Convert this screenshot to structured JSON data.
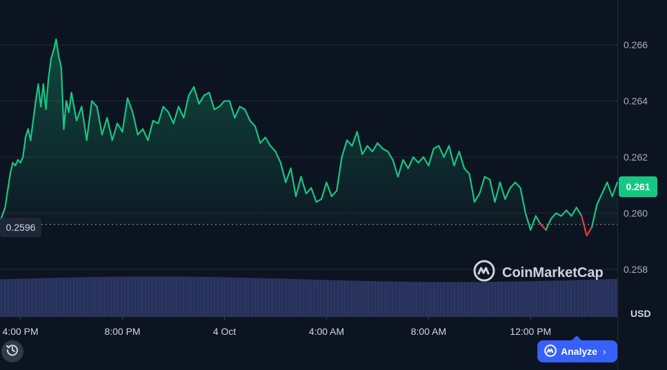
{
  "chart_data": {
    "type": "line",
    "currency": "USD",
    "current_price": "0.261",
    "start_price": "0.2596",
    "y_ticks": [
      "0.266",
      "0.264",
      "0.262",
      "0.260",
      "0.258"
    ],
    "y_tick_values": [
      0.266,
      0.264,
      0.262,
      0.26,
      0.258
    ],
    "ylim": [
      0.2563,
      0.2676
    ],
    "x_ticks": [
      "4:00 PM",
      "8:00 PM",
      "4 Oct",
      "4:00 AM",
      "8:00 AM",
      "12:00 PM"
    ],
    "x_tick_hours": [
      0,
      4,
      8,
      12,
      16,
      20
    ],
    "xlim_hours": [
      -0.8,
      23.4
    ],
    "x_unit": "hours since 4:00 PM",
    "grid": true,
    "colors": {
      "up": "#16c784",
      "down": "#ea3943",
      "volume": "#2b3561",
      "grid": "#222a38",
      "background": "#0d1421"
    },
    "price_series": [
      [
        -0.8,
        0.2597
      ],
      [
        -0.6,
        0.2602
      ],
      [
        -0.4,
        0.2614
      ],
      [
        -0.3,
        0.2618
      ],
      [
        -0.2,
        0.2617
      ],
      [
        -0.1,
        0.2619
      ],
      [
        0.0,
        0.2618
      ],
      [
        0.1,
        0.262
      ],
      [
        0.2,
        0.2627
      ],
      [
        0.3,
        0.263
      ],
      [
        0.4,
        0.2626
      ],
      [
        0.5,
        0.2633
      ],
      [
        0.6,
        0.264
      ],
      [
        0.7,
        0.2646
      ],
      [
        0.8,
        0.2638
      ],
      [
        0.9,
        0.2646
      ],
      [
        1.0,
        0.2637
      ],
      [
        1.1,
        0.2648
      ],
      [
        1.2,
        0.2655
      ],
      [
        1.3,
        0.2658
      ],
      [
        1.4,
        0.2662
      ],
      [
        1.5,
        0.2656
      ],
      [
        1.6,
        0.2652
      ],
      [
        1.7,
        0.263
      ],
      [
        1.8,
        0.264
      ],
      [
        1.9,
        0.2636
      ],
      [
        2.0,
        0.2643
      ],
      [
        2.2,
        0.2633
      ],
      [
        2.4,
        0.2638
      ],
      [
        2.6,
        0.2626
      ],
      [
        2.8,
        0.264
      ],
      [
        3.0,
        0.2638
      ],
      [
        3.2,
        0.2628
      ],
      [
        3.4,
        0.2634
      ],
      [
        3.6,
        0.2626
      ],
      [
        3.8,
        0.2632
      ],
      [
        4.0,
        0.2629
      ],
      [
        4.2,
        0.2641
      ],
      [
        4.4,
        0.2636
      ],
      [
        4.6,
        0.2628
      ],
      [
        4.8,
        0.263
      ],
      [
        5.0,
        0.2626
      ],
      [
        5.2,
        0.2633
      ],
      [
        5.4,
        0.2632
      ],
      [
        5.6,
        0.2638
      ],
      [
        5.8,
        0.2636
      ],
      [
        6.0,
        0.2632
      ],
      [
        6.2,
        0.2638
      ],
      [
        6.4,
        0.2634
      ],
      [
        6.6,
        0.2642
      ],
      [
        6.8,
        0.2645
      ],
      [
        7.0,
        0.2639
      ],
      [
        7.2,
        0.2642
      ],
      [
        7.4,
        0.2643
      ],
      [
        7.6,
        0.2637
      ],
      [
        7.8,
        0.2638
      ],
      [
        8.0,
        0.264
      ],
      [
        8.2,
        0.264
      ],
      [
        8.4,
        0.2634
      ],
      [
        8.6,
        0.2638
      ],
      [
        8.8,
        0.2637
      ],
      [
        9.0,
        0.2633
      ],
      [
        9.2,
        0.2631
      ],
      [
        9.4,
        0.2625
      ],
      [
        9.6,
        0.2627
      ],
      [
        9.8,
        0.2624
      ],
      [
        10.0,
        0.2622
      ],
      [
        10.2,
        0.2618
      ],
      [
        10.4,
        0.2611
      ],
      [
        10.6,
        0.2616
      ],
      [
        10.8,
        0.2606
      ],
      [
        11.0,
        0.2613
      ],
      [
        11.2,
        0.2607
      ],
      [
        11.4,
        0.2609
      ],
      [
        11.6,
        0.2604
      ],
      [
        11.8,
        0.2605
      ],
      [
        12.0,
        0.2611
      ],
      [
        12.2,
        0.2606
      ],
      [
        12.4,
        0.2608
      ],
      [
        12.6,
        0.262
      ],
      [
        12.8,
        0.2626
      ],
      [
        13.0,
        0.2624
      ],
      [
        13.2,
        0.2629
      ],
      [
        13.4,
        0.2621
      ],
      [
        13.6,
        0.2624
      ],
      [
        13.8,
        0.2622
      ],
      [
        14.0,
        0.2625
      ],
      [
        14.2,
        0.2623
      ],
      [
        14.4,
        0.2622
      ],
      [
        14.6,
        0.2619
      ],
      [
        14.8,
        0.2613
      ],
      [
        15.0,
        0.2619
      ],
      [
        15.2,
        0.2616
      ],
      [
        15.4,
        0.262
      ],
      [
        15.6,
        0.2618
      ],
      [
        15.8,
        0.262
      ],
      [
        16.0,
        0.2617
      ],
      [
        16.2,
        0.2623
      ],
      [
        16.4,
        0.2624
      ],
      [
        16.6,
        0.262
      ],
      [
        16.8,
        0.2624
      ],
      [
        17.0,
        0.2617
      ],
      [
        17.2,
        0.2622
      ],
      [
        17.4,
        0.2616
      ],
      [
        17.6,
        0.2614
      ],
      [
        17.8,
        0.2604
      ],
      [
        18.0,
        0.2607
      ],
      [
        18.2,
        0.2613
      ],
      [
        18.4,
        0.2612
      ],
      [
        18.6,
        0.2604
      ],
      [
        18.8,
        0.2611
      ],
      [
        19.0,
        0.2605
      ],
      [
        19.2,
        0.2609
      ],
      [
        19.4,
        0.2611
      ],
      [
        19.6,
        0.2609
      ],
      [
        19.8,
        0.26
      ],
      [
        20.0,
        0.2594
      ],
      [
        20.2,
        0.2599
      ],
      [
        20.4,
        0.2596
      ],
      [
        20.6,
        0.2594
      ],
      [
        20.8,
        0.2598
      ],
      [
        21.0,
        0.26
      ],
      [
        21.2,
        0.2599
      ],
      [
        21.4,
        0.2601
      ],
      [
        21.6,
        0.2599
      ],
      [
        21.8,
        0.2602
      ],
      [
        22.0,
        0.2599
      ],
      [
        22.2,
        0.2592
      ],
      [
        22.4,
        0.2595
      ],
      [
        22.6,
        0.2603
      ],
      [
        22.8,
        0.2607
      ],
      [
        23.0,
        0.2611
      ],
      [
        23.2,
        0.2606
      ],
      [
        23.4,
        0.2611
      ]
    ],
    "volume_level": 0.78
  },
  "watermark_text": "CoinMarketCap",
  "analyze_label": "Analyze",
  "analyze_chevron": "›",
  "history_icon": "history-icon"
}
